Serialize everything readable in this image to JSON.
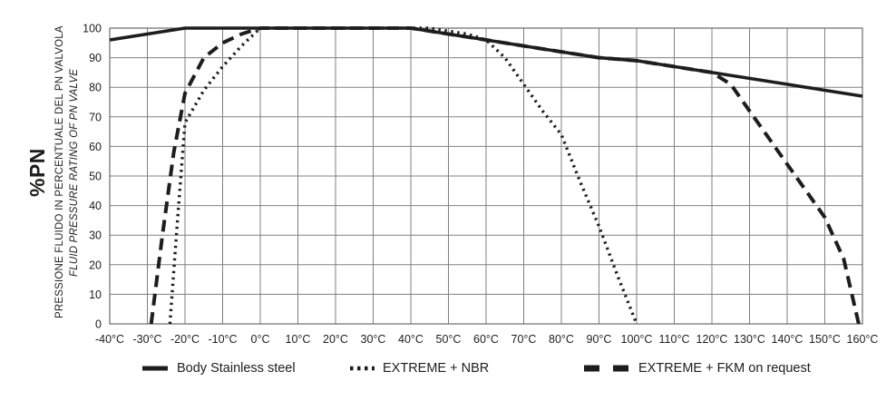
{
  "y_axis": {
    "title_main": "%PN",
    "title_it": "PRESSIONE FLUIDO IN PERCENTUALE DEL PN VALVOLA",
    "title_en": "FLUID PRESSURE RATING OF PN VALVE"
  },
  "chart_data": {
    "type": "line",
    "title": "",
    "xlabel": "",
    "ylabel": "%PN",
    "xlim": [
      -40,
      160
    ],
    "ylim": [
      0,
      100
    ],
    "grid": true,
    "legend_position": "bottom",
    "x_ticks": [
      "-40°C",
      "-30°C",
      "-20°C",
      "-10°C",
      "0°C",
      "10°C",
      "20°C",
      "30°C",
      "40°C",
      "50°C",
      "60°C",
      "70°C",
      "80°C",
      "90°C",
      "100°C",
      "110°C",
      "120°C",
      "130°C",
      "140°C",
      "150°C",
      "160°C"
    ],
    "y_ticks": [
      "0",
      "10",
      "20",
      "30",
      "40",
      "50",
      "60",
      "70",
      "80",
      "90",
      "100"
    ],
    "series": [
      {
        "name": "Body Stainless steel",
        "style": "solid",
        "points": [
          [
            -40,
            96
          ],
          [
            -30,
            98
          ],
          [
            -20,
            100
          ],
          [
            0,
            100
          ],
          [
            40,
            100
          ],
          [
            50,
            98
          ],
          [
            60,
            96
          ],
          [
            70,
            94
          ],
          [
            80,
            92
          ],
          [
            90,
            90
          ],
          [
            100,
            89
          ],
          [
            110,
            87
          ],
          [
            120,
            85
          ],
          [
            130,
            83
          ],
          [
            140,
            81
          ],
          [
            150,
            79
          ],
          [
            160,
            77
          ]
        ]
      },
      {
        "name": "EXTREME + NBR",
        "style": "dotted",
        "points": [
          [
            -24,
            0
          ],
          [
            -22,
            35
          ],
          [
            -20,
            68
          ],
          [
            -15,
            79
          ],
          [
            -10,
            87
          ],
          [
            -5,
            94
          ],
          [
            0,
            100
          ],
          [
            45,
            100
          ],
          [
            50,
            99
          ],
          [
            55,
            98
          ],
          [
            60,
            96
          ],
          [
            65,
            90
          ],
          [
            70,
            81
          ],
          [
            75,
            72
          ],
          [
            80,
            64
          ],
          [
            85,
            48
          ],
          [
            90,
            33
          ],
          [
            95,
            16
          ],
          [
            100,
            0
          ]
        ]
      },
      {
        "name": "EXTREME + FKM on request",
        "style": "dashed",
        "points": [
          [
            -29,
            0
          ],
          [
            -26,
            30
          ],
          [
            -23,
            58
          ],
          [
            -20,
            78
          ],
          [
            -15,
            90
          ],
          [
            -10,
            95
          ],
          [
            -5,
            98
          ],
          [
            0,
            100
          ],
          [
            40,
            100
          ],
          [
            50,
            98
          ],
          [
            60,
            96
          ],
          [
            70,
            94
          ],
          [
            80,
            92
          ],
          [
            90,
            90
          ],
          [
            100,
            89
          ],
          [
            110,
            87
          ],
          [
            120,
            85
          ],
          [
            125,
            81
          ],
          [
            130,
            72
          ],
          [
            135,
            63
          ],
          [
            140,
            54
          ],
          [
            145,
            45
          ],
          [
            150,
            36
          ],
          [
            155,
            22
          ],
          [
            159,
            0
          ]
        ]
      }
    ]
  }
}
